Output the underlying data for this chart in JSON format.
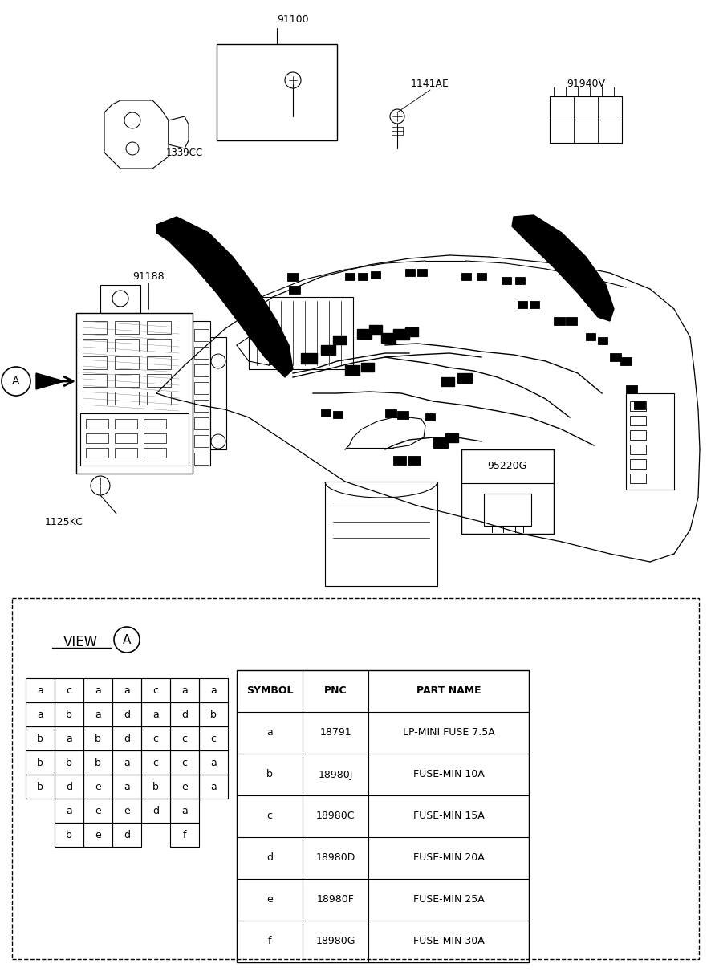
{
  "bg_color": "#ffffff",
  "table_header": [
    "SYMBOL",
    "PNC",
    "PART NAME"
  ],
  "table_rows": [
    [
      "a",
      "18791",
      "LP-MINI FUSE 7.5A"
    ],
    [
      "b",
      "18980J",
      "FUSE-MIN 10A"
    ],
    [
      "c",
      "18980C",
      "FUSE-MIN 15A"
    ],
    [
      "d",
      "18980D",
      "FUSE-MIN 20A"
    ],
    [
      "e",
      "18980F",
      "FUSE-MIN 25A"
    ],
    [
      "f",
      "18980G",
      "FUSE-MIN 30A"
    ]
  ],
  "fuse_grid": [
    [
      "a",
      "c",
      "a",
      "a",
      "c",
      "a",
      "a"
    ],
    [
      "a",
      "b",
      "a",
      "d",
      "a",
      "d",
      "b"
    ],
    [
      "b",
      "a",
      "b",
      "d",
      "c",
      "c",
      "c"
    ],
    [
      "b",
      "b",
      "b",
      "a",
      "c",
      "c",
      "a"
    ],
    [
      "b",
      "d",
      "e",
      "a",
      "b",
      "e",
      "a"
    ],
    [
      "",
      "a",
      "e",
      "e",
      "d",
      "a",
      ""
    ],
    [
      "",
      "b",
      "e",
      "d",
      "",
      "f",
      ""
    ]
  ]
}
